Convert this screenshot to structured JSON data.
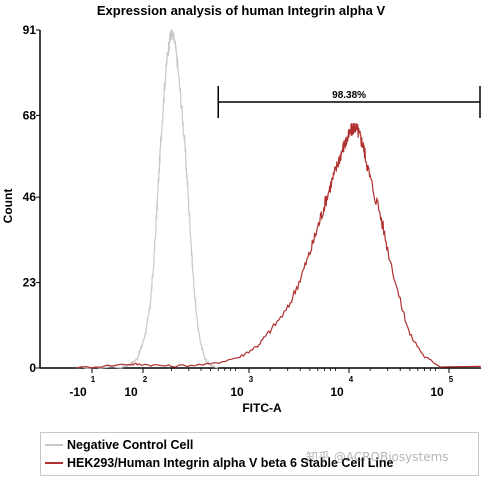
{
  "chart_data": {
    "type": "histogram",
    "title": "Expression analysis of human Integrin alpha V",
    "xlabel": "FITC-A",
    "ylabel": "Count",
    "x_scale": "log",
    "ylim": [
      0,
      91
    ],
    "yticks": [
      "0",
      "23",
      "46",
      "68",
      "91"
    ],
    "xticks": [
      {
        "base": "-10",
        "exp": "1"
      },
      {
        "base": "10",
        "exp": "2"
      },
      {
        "base": "10",
        "exp": "3"
      },
      {
        "base": "10",
        "exp": "4"
      },
      {
        "base": "10",
        "exp": "5"
      }
    ],
    "gate": {
      "label": "98.38%",
      "x_start": 600,
      "x_end": 200000,
      "y": 69
    },
    "series": [
      {
        "name": "Negative Control Cell",
        "color": "#c8c8c8",
        "x": [
          5,
          40,
          60,
          80,
          100,
          110,
          120,
          130,
          140,
          150,
          160,
          170,
          180,
          190,
          200,
          215,
          230,
          250,
          270,
          290,
          310,
          330,
          360,
          400,
          450,
          500,
          600
        ],
        "y": [
          0,
          0.3,
          1,
          2.5,
          6,
          10,
          16,
          26,
          40,
          54,
          66,
          76,
          83,
          88,
          90,
          88,
          82,
          72,
          62,
          50,
          38,
          26,
          14,
          6,
          2,
          0.8,
          0
        ]
      },
      {
        "name": "HEK293/Human Integrin alpha V beta 6 Stable Cell Line",
        "color": "#b03030",
        "x": [
          5,
          50,
          100,
          200,
          500,
          1000,
          1500,
          2000,
          3000,
          4000,
          5000,
          6000,
          7000,
          8000,
          9000,
          10000,
          11000,
          12000,
          13000,
          14000,
          15000,
          16000,
          17000,
          18000,
          20000,
          25000,
          30000,
          40000,
          50000,
          70000,
          100000,
          150000
        ],
        "y": [
          0,
          1,
          1,
          0.5,
          1,
          3,
          6,
          10,
          16,
          24,
          31,
          38,
          44,
          49,
          53,
          57,
          60,
          62,
          64,
          65,
          64,
          62,
          60,
          57,
          51,
          42,
          32,
          18,
          9,
          3,
          0.5,
          0
        ]
      }
    ]
  },
  "watermark": "知乎 @ACROBiosystems"
}
